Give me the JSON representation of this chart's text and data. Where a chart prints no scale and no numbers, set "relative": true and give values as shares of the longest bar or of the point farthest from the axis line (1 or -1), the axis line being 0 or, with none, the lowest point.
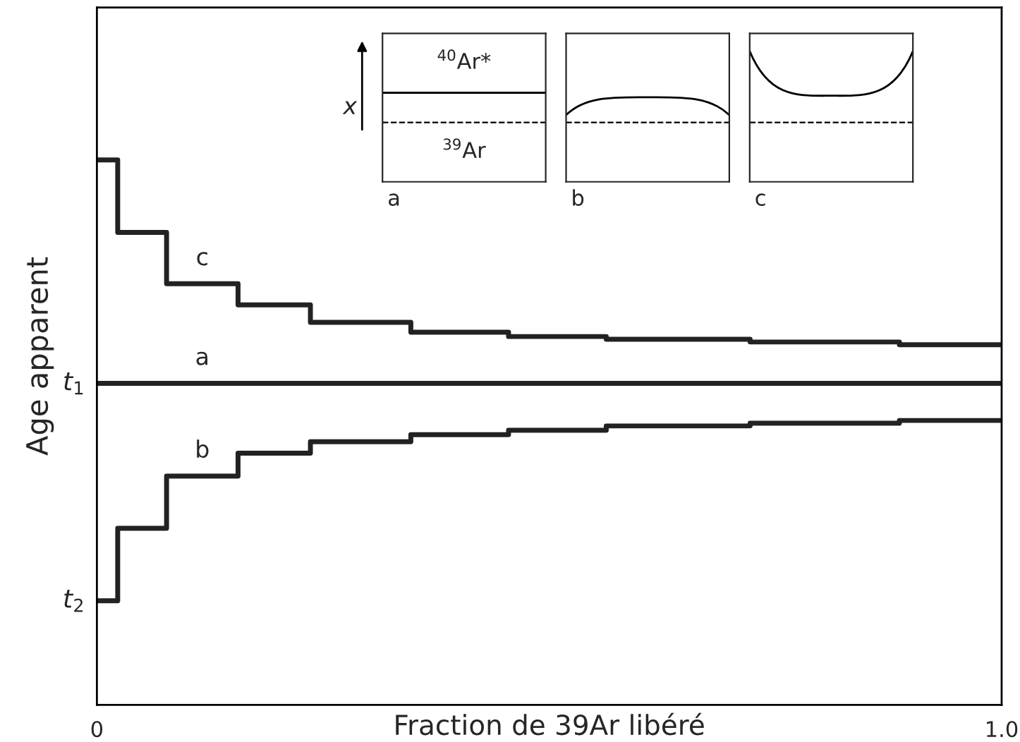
{
  "chart_data": {
    "type": "step",
    "relative": true,
    "xlabel": "Fraction de 39Ar libéré",
    "ylabel": "Age apparent",
    "xlim": [
      0,
      1
    ],
    "xticks": [
      0,
      {
        "value": 1,
        "label": "1.0"
      }
    ],
    "grid": false,
    "legend": false,
    "line_style": "solid",
    "marker": "none",
    "x": [
      0,
      0.023,
      0.077,
      0.156,
      0.236,
      0.347,
      0.455,
      0.563,
      0.722,
      0.887,
      1.0
    ],
    "series": [
      {
        "name": "c",
        "color": "#222222",
        "values": [
          1,
          0.867,
          0.773,
          0.734,
          0.702,
          0.684,
          0.676,
          0.671,
          0.666,
          0.661,
          0.661
        ]
      },
      {
        "name": "a",
        "color": "#222222",
        "values": [
          0.59,
          0.59,
          0.59,
          0.59,
          0.59,
          0.59,
          0.59,
          0.59,
          0.59,
          0.59,
          0.59
        ]
      },
      {
        "name": "b",
        "color": "#222222",
        "values": [
          0.191,
          0.324,
          0.42,
          0.462,
          0.483,
          0.496,
          0.504,
          0.512,
          0.517,
          0.522,
          0.522
        ]
      }
    ],
    "annotations": [
      {
        "text": "t$_{1}$",
        "x": 0,
        "y": 0.59
      },
      {
        "text": "t$_{2}$",
        "x": 0,
        "y": 0.191
      },
      "$^{40}$Ar*",
      "$^{39}$Ar",
      "x",
      "a",
      "b",
      "c"
    ]
  }
}
